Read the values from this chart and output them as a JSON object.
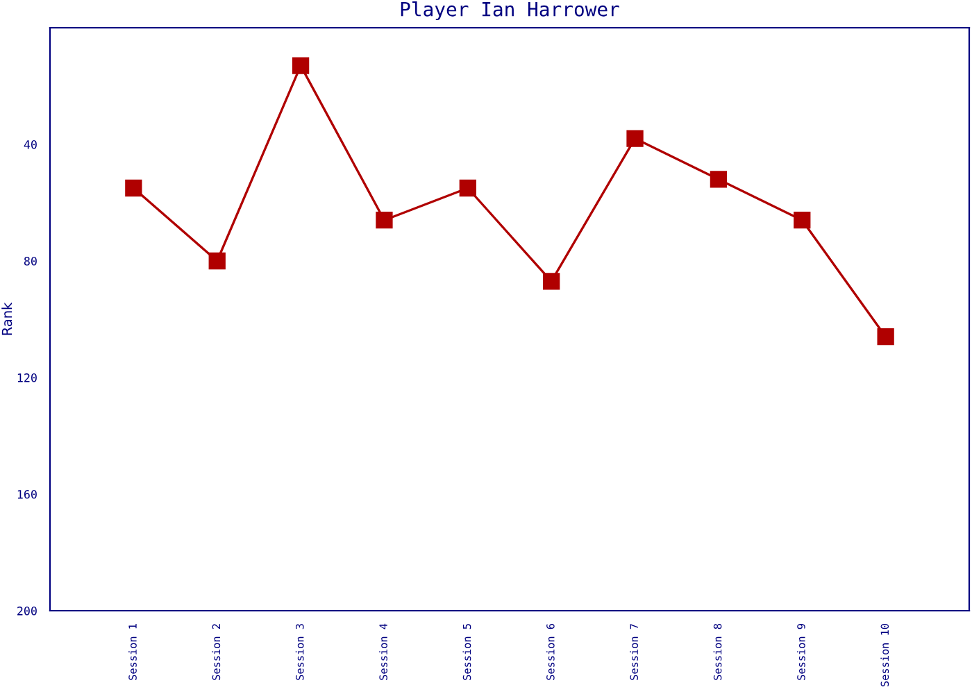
{
  "chart_data": {
    "type": "line",
    "title": "Player Ian Harrower",
    "ylabel": "Rank",
    "categories": [
      "Session 1",
      "Session 2",
      "Session 3",
      "Session 4",
      "Session 5",
      "Session 6",
      "Session 7",
      "Session 8",
      "Session 9",
      "Session 10"
    ],
    "series": [
      {
        "color": "#b00000",
        "values": [
          55,
          80,
          13,
          66,
          55,
          87,
          38,
          52,
          66,
          106
        ]
      }
    ],
    "ylim": [
      200,
      0
    ],
    "yticks": [
      40,
      80,
      120,
      160,
      200
    ],
    "grid": false,
    "marker": "square",
    "line_style": "solid"
  }
}
